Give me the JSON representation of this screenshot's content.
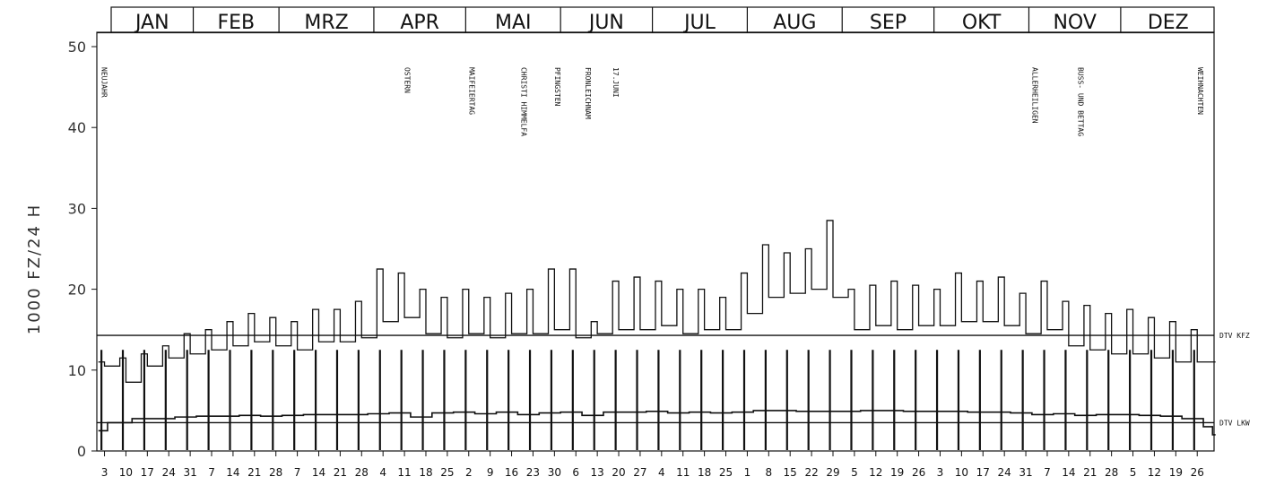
{
  "chart_data": {
    "type": "line",
    "ylabel": "1000 FZ/24 H",
    "ylim": [
      0,
      50
    ],
    "yticks": [
      "0",
      "10",
      "20",
      "30",
      "40",
      "50"
    ],
    "months": [
      "JAN",
      "FEB",
      "MRZ",
      "APR",
      "MAI",
      "JUN",
      "JUL",
      "AUG",
      "SEP",
      "OKT",
      "NOV",
      "DEZ"
    ],
    "x_tick_labels": [
      "3",
      "10",
      "17",
      "24",
      "31",
      "7",
      "14",
      "21",
      "28",
      "7",
      "14",
      "21",
      "28",
      "4",
      "11",
      "18",
      "25",
      "2",
      "9",
      "16",
      "23",
      "30",
      "6",
      "13",
      "20",
      "27",
      "4",
      "11",
      "18",
      "25",
      "1",
      "8",
      "15",
      "22",
      "29",
      "5",
      "12",
      "19",
      "26",
      "3",
      "10",
      "17",
      "24",
      "31",
      "7",
      "14",
      "21",
      "28",
      "5",
      "12",
      "19",
      "26"
    ],
    "holidays": [
      {
        "label": "NEUJAHR",
        "day": 1
      },
      {
        "label": "OSTERN",
        "day": 100
      },
      {
        "label": "MAIFEIERTAG",
        "day": 121
      },
      {
        "label": "CHRISTI HIMMELFA",
        "day": 138
      },
      {
        "label": "PFINGSTEN",
        "day": 149
      },
      {
        "label": "FRONLEICHNAM",
        "day": 159
      },
      {
        "label": "17.JUNI",
        "day": 168
      },
      {
        "label": "ALLERHEILIGEN",
        "day": 305
      },
      {
        "label": "BUSS- UND BETTAG",
        "day": 320
      },
      {
        "label": "WEIHNACHTEN",
        "day": 359
      }
    ],
    "reference_lines": [
      {
        "label": "DTV KFZ",
        "value": 14.3
      },
      {
        "label": "DTV LKW",
        "value": 3.5
      }
    ],
    "series": [
      {
        "name": "KFZ",
        "x": [
          1,
          3,
          8,
          10,
          15,
          17,
          22,
          24,
          29,
          31,
          36,
          38,
          43,
          45,
          50,
          52,
          57,
          59,
          64,
          66,
          71,
          73,
          78,
          80,
          85,
          87,
          92,
          94,
          99,
          101,
          106,
          108,
          113,
          115,
          120,
          122,
          127,
          129,
          134,
          136,
          141,
          143,
          148,
          150,
          155,
          157,
          162,
          164,
          169,
          171,
          176,
          178,
          183,
          185,
          190,
          192,
          197,
          199,
          204,
          206,
          211,
          213,
          218,
          220,
          225,
          227,
          232,
          234,
          239,
          241,
          246,
          248,
          253,
          255,
          260,
          262,
          267,
          269,
          274,
          276,
          281,
          283,
          288,
          290,
          295,
          297,
          302,
          304,
          309,
          311,
          316,
          318,
          323,
          325,
          330,
          332,
          337,
          339,
          344,
          346,
          351,
          353,
          358,
          360,
          365
        ],
        "values": [
          11,
          10.5,
          11.5,
          8.5,
          12,
          10.5,
          13,
          11.5,
          14.5,
          12,
          15,
          12.5,
          16,
          13,
          17,
          13.5,
          16.5,
          13,
          16,
          12.5,
          17.5,
          13.5,
          17.5,
          13.5,
          18.5,
          14,
          22.5,
          16,
          22,
          16.5,
          20,
          14.5,
          19,
          14,
          20,
          14.5,
          19,
          14,
          19.5,
          14.5,
          20,
          14.5,
          22.5,
          15,
          22.5,
          14,
          16,
          14.5,
          21,
          15,
          21.5,
          15,
          21,
          15.5,
          20,
          14.5,
          20,
          15,
          19,
          15,
          22,
          17,
          25.5,
          19,
          24.5,
          19.5,
          25,
          20,
          28.5,
          19,
          20,
          15,
          20.5,
          15.5,
          21,
          15,
          20.5,
          15.5,
          20,
          15.5,
          22,
          16,
          21,
          16,
          21.5,
          15.5,
          19.5,
          14.5,
          21,
          15,
          18.5,
          13,
          18,
          12.5,
          17,
          12,
          17.5,
          12,
          16.5,
          11.5,
          16,
          11,
          15,
          11,
          11
        ]
      },
      {
        "name": "LKW",
        "x": [
          1,
          4,
          12,
          19,
          26,
          33,
          40,
          47,
          54,
          61,
          68,
          75,
          82,
          89,
          96,
          103,
          110,
          117,
          124,
          131,
          138,
          145,
          152,
          159,
          166,
          173,
          180,
          187,
          194,
          201,
          208,
          215,
          222,
          229,
          236,
          243,
          250,
          257,
          264,
          271,
          278,
          285,
          292,
          299,
          306,
          313,
          320,
          327,
          334,
          341,
          348,
          355,
          362,
          365
        ],
        "values": [
          2.5,
          3.5,
          4,
          4,
          4.2,
          4.3,
          4.3,
          4.4,
          4.3,
          4.4,
          4.5,
          4.5,
          4.5,
          4.6,
          4.7,
          4.2,
          4.7,
          4.8,
          4.6,
          4.8,
          4.5,
          4.7,
          4.8,
          4.4,
          4.8,
          4.8,
          4.9,
          4.7,
          4.8,
          4.7,
          4.8,
          5,
          5,
          4.9,
          4.9,
          4.9,
          5,
          5,
          4.9,
          4.9,
          4.9,
          4.8,
          4.8,
          4.7,
          4.5,
          4.6,
          4.4,
          4.5,
          4.5,
          4.4,
          4.3,
          4,
          3,
          2
        ]
      }
    ]
  }
}
